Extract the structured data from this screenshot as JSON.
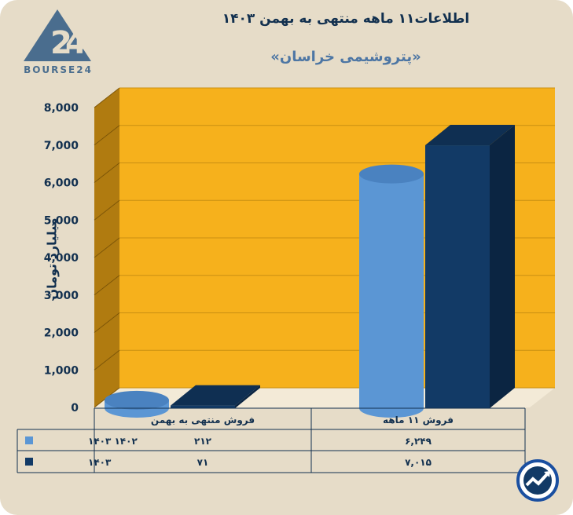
{
  "header": {
    "title": "اطلاعات۱۱ ماهه منتهی به بهمن ۱۴۰۳",
    "subtitle": "«پتروشیمی خراسان»",
    "logo_text": "BOURSE24"
  },
  "colors": {
    "background": "#e6dcc8",
    "plot_back": "#f6b11c",
    "plot_side": "#b07b10",
    "series_1402": "#5b96d4",
    "series_1403": "#123a66",
    "text": "#12304f"
  },
  "icons": [
    "bourse24-logo-icon",
    "trend-arrow-icon"
  ],
  "chart_data": {
    "type": "bar",
    "title": "اطلاعات۱۱ ماهه منتهی به بهمن ۱۴۰۳",
    "subtitle": "«پتروشیمی خراسان»",
    "ylabel": "میلیارد تومان",
    "xlabel": "",
    "ylim": [
      0,
      8000
    ],
    "yticks": [
      "0",
      "1,000",
      "2,000",
      "3,000",
      "4,000",
      "5,000",
      "6,000",
      "7,000",
      "8,000"
    ],
    "categories": [
      "فروش منتهی به  بهمن",
      "فروش ۱۱ ماهه"
    ],
    "series": [
      {
        "name": "۱۴۰۲ ۱۴۰۳",
        "values": [
          212,
          6249
        ],
        "labels": [
          "۲۱۲",
          "۶,۲۴۹"
        ]
      },
      {
        "name": "۱۴۰۳",
        "values": [
          71,
          7015
        ],
        "labels": [
          "۷۱",
          "۷,۰۱۵"
        ]
      }
    ],
    "grid": true,
    "legend": "table-left"
  }
}
